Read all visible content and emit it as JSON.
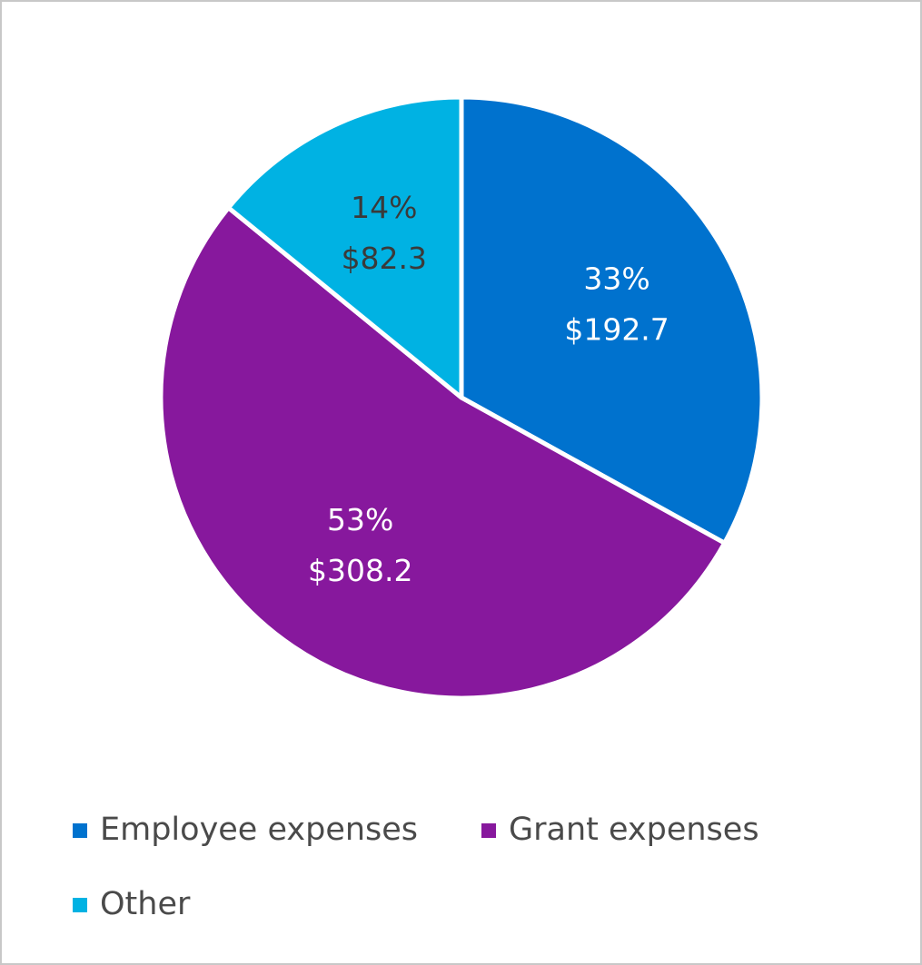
{
  "chart_data": {
    "type": "pie",
    "categories": [
      "Employee expenses",
      "Grant expenses",
      "Other"
    ],
    "values": [
      192.7,
      308.2,
      82.3
    ],
    "value_labels": [
      "$192.7",
      "$308.2",
      "$82.3"
    ],
    "percent_labels": [
      "33%",
      "53%",
      "14%"
    ],
    "colors": [
      "#0072ce",
      "#87189d",
      "#00b2e3"
    ],
    "label_colors": [
      "#ffffff",
      "#ffffff",
      "#3a3a3a"
    ]
  }
}
